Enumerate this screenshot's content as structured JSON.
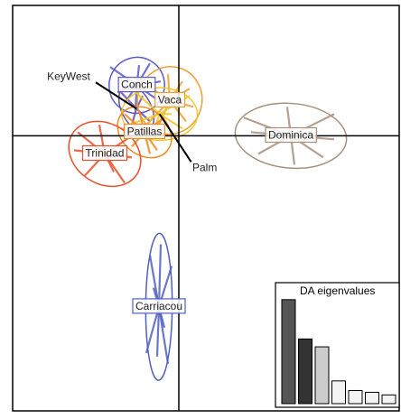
{
  "chart_data": [
    {
      "type": "scatter",
      "xlim": [
        -4.6,
        6.1
      ],
      "ylim": [
        -7.6,
        3.6
      ],
      "series": [
        {
          "name": "Conch",
          "color": "#5a5ac8",
          "x": [
            -1.9,
            -0.5,
            -1.5,
            -0.8,
            -1.2,
            -1.7,
            -0.6,
            -1.1
          ],
          "y": [
            1.9,
            1.5,
            0.9,
            2.0,
            0.7,
            1.2,
            1.0,
            1.95
          ]
        },
        {
          "name": "KeyWest",
          "color": "#6a4fb0",
          "x": [
            -1.6,
            -0.8,
            -1.3,
            -1.0
          ],
          "y": [
            1.2,
            0.4,
            0.3,
            1.1
          ]
        },
        {
          "name": "Vaca",
          "color": "#f0a030",
          "x": [
            -1.2,
            0.3,
            0.2,
            -0.9,
            -0.3,
            0.4,
            -0.6,
            0.1
          ],
          "y": [
            1.6,
            1.3,
            0.4,
            0.3,
            1.7,
            0.8,
            0.2,
            1.5
          ]
        },
        {
          "name": "Palm",
          "color": "#f0c828",
          "x": [
            -0.2,
            0.3,
            -1.3,
            0.1,
            -1.4,
            -0.7
          ],
          "y": [
            0.6,
            1.1,
            1.3,
            0.2,
            0.3,
            0.1
          ]
        },
        {
          "name": "Patillas",
          "color": "#f08a20",
          "x": [
            -1.5,
            -0.4,
            -1.3,
            -0.6,
            -1.1,
            -0.3,
            -1.6,
            -0.8
          ],
          "y": [
            0.6,
            0.5,
            -0.3,
            -0.4,
            0.7,
            0.0,
            0.2,
            -0.5
          ]
        },
        {
          "name": "Trinidad",
          "color": "#e8502a",
          "x": [
            -2.8,
            -1.3,
            -2.6,
            -1.5,
            -2.2,
            -1.8,
            -2.9,
            -1.3
          ],
          "y": [
            0.1,
            0.0,
            -1.1,
            -1.3,
            0.3,
            -1.0,
            -0.4,
            -0.6
          ]
        },
        {
          "name": "Dominica",
          "color": "#a8907c",
          "x": [
            1.8,
            4.3,
            2.2,
            4.0,
            3.0,
            3.2,
            2.0,
            4.3
          ],
          "y": [
            0.5,
            0.6,
            -0.5,
            -0.6,
            0.8,
            -0.8,
            0.1,
            -0.1
          ]
        },
        {
          "name": "Carriacou",
          "color": "#5060c0",
          "x": [
            -0.8,
            -0.2,
            -0.9,
            -0.3,
            -0.7,
            -0.4,
            -0.5,
            -0.6
          ],
          "y": [
            -3.3,
            -3.6,
            -6.0,
            -6.3,
            -4.2,
            -5.3,
            -3.0,
            -6.1
          ]
        }
      ]
    },
    {
      "type": "bar",
      "title": "DA eigenvalues",
      "values": [
        119,
        74,
        65,
        26,
        15,
        13,
        10
      ],
      "colors": [
        "#555555",
        "#333333",
        "#cccccc",
        "#f4f4f4",
        "#f4f4f4",
        "#f4f4f4",
        "#f4f4f4"
      ],
      "ylim": [
        0,
        125
      ]
    }
  ]
}
